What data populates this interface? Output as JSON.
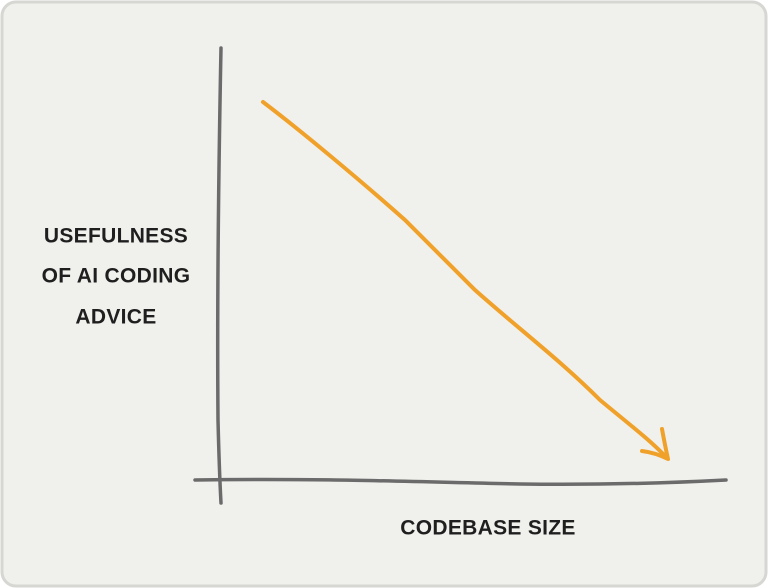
{
  "diagram": {
    "y_axis_label_lines": [
      "USEFULNESS",
      "OF AI CODING",
      "ADVICE"
    ],
    "x_axis_label": "CODEBASE SIZE"
  }
}
